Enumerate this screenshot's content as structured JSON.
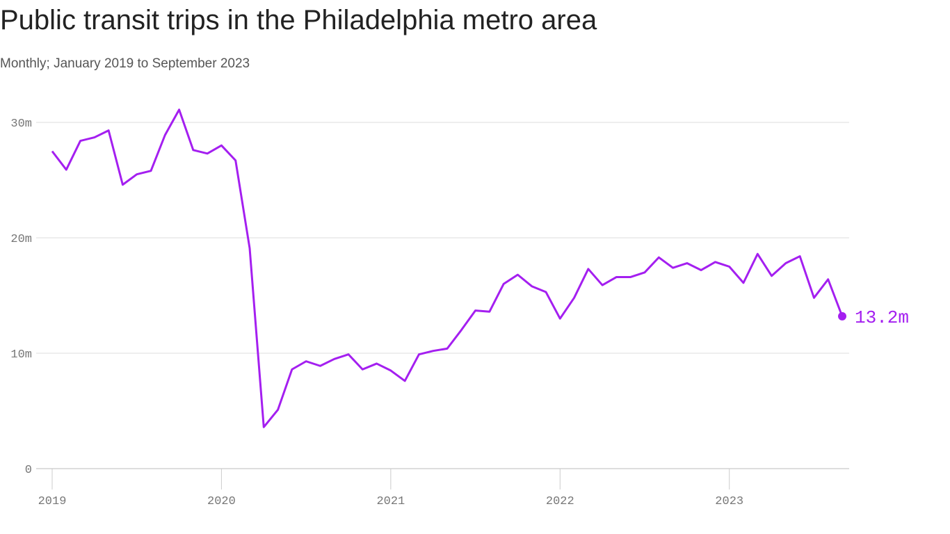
{
  "chart_data": {
    "type": "line",
    "title": "Public transit trips in the Philadelphia metro area",
    "subtitle": "Monthly; January 2019 to September 2023",
    "x": [
      "2019-01",
      "2019-02",
      "2019-03",
      "2019-04",
      "2019-05",
      "2019-06",
      "2019-07",
      "2019-08",
      "2019-09",
      "2019-10",
      "2019-11",
      "2019-12",
      "2020-01",
      "2020-02",
      "2020-03",
      "2020-04",
      "2020-05",
      "2020-06",
      "2020-07",
      "2020-08",
      "2020-09",
      "2020-10",
      "2020-11",
      "2020-12",
      "2021-01",
      "2021-02",
      "2021-03",
      "2021-04",
      "2021-05",
      "2021-06",
      "2021-07",
      "2021-08",
      "2021-09",
      "2021-10",
      "2021-11",
      "2021-12",
      "2022-01",
      "2022-02",
      "2022-03",
      "2022-04",
      "2022-05",
      "2022-06",
      "2022-07",
      "2022-08",
      "2022-09",
      "2022-10",
      "2022-11",
      "2022-12",
      "2023-01",
      "2023-02",
      "2023-03",
      "2023-04",
      "2023-05",
      "2023-06",
      "2023-07",
      "2023-08",
      "2023-09"
    ],
    "series": [
      {
        "name": "Public transit trips",
        "color": "#a41ff0",
        "values": [
          27.5,
          25.9,
          28.4,
          28.7,
          29.3,
          24.6,
          25.5,
          25.8,
          28.9,
          31.1,
          27.6,
          27.3,
          28.0,
          26.7,
          19.1,
          3.6,
          5.1,
          8.6,
          9.3,
          8.9,
          9.5,
          9.9,
          8.6,
          9.1,
          8.5,
          7.6,
          9.9,
          10.2,
          10.4,
          12.0,
          13.7,
          13.6,
          16.0,
          16.8,
          15.8,
          15.3,
          13.0,
          14.8,
          17.3,
          15.9,
          16.6,
          16.6,
          17.0,
          18.3,
          17.4,
          17.8,
          17.2,
          17.9,
          17.5,
          16.1,
          18.6,
          16.7,
          17.8,
          18.4,
          14.8,
          16.4,
          13.2
        ],
        "value_labels": [
          null,
          null,
          null,
          null,
          null,
          null,
          null,
          null,
          null,
          null,
          null,
          null,
          null,
          null,
          null,
          null,
          null,
          null,
          null,
          null,
          null,
          null,
          null,
          null,
          null,
          null,
          null,
          null,
          null,
          null,
          null,
          null,
          null,
          null,
          null,
          null,
          null,
          null,
          null,
          null,
          null,
          null,
          null,
          null,
          null,
          null,
          null,
          null,
          null,
          null,
          null,
          null,
          null,
          null,
          null,
          null,
          "13.2m"
        ]
      }
    ],
    "xlim": [
      "2019-01",
      "2023-09"
    ],
    "xticks": [
      {
        "value": "2019-01",
        "label": "2019"
      },
      {
        "value": "2020-01",
        "label": "2020"
      },
      {
        "value": "2021-01",
        "label": "2021"
      },
      {
        "value": "2022-01",
        "label": "2022"
      },
      {
        "value": "2023-01",
        "label": "2023"
      }
    ],
    "ylim": [
      0,
      30
    ],
    "yticks": [
      0,
      {
        "value": 10,
        "label": "10m"
      },
      {
        "value": 20,
        "label": "20m"
      },
      {
        "value": 30,
        "label": "30m"
      }
    ],
    "grid": true
  }
}
